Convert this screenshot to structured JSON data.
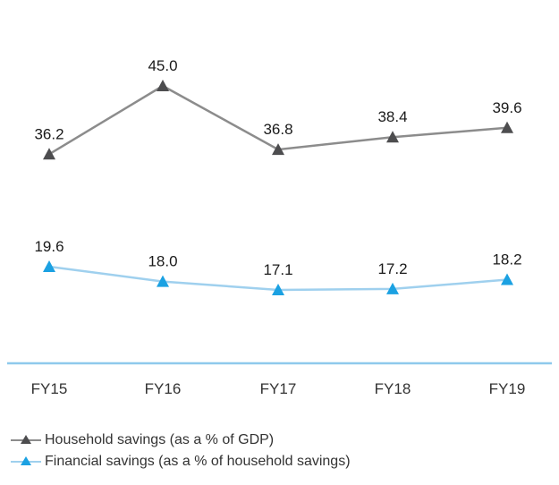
{
  "chart_data": {
    "type": "line",
    "title": "",
    "xlabel": "",
    "ylabel": "",
    "categories": [
      "FY15",
      "FY16",
      "FY17",
      "FY18",
      "FY19"
    ],
    "series": [
      {
        "name": "Household savings (as a % of GDP)",
        "values": [
          36.2,
          45.0,
          36.8,
          38.4,
          39.6
        ],
        "labels": [
          "36.2",
          "45.0",
          "36.8",
          "38.4",
          "39.6"
        ],
        "line_color": "#8c8c8c",
        "marker_color": "#4d4d4f",
        "marker": "triangle"
      },
      {
        "name": "Financial savings (as a % of household savings)",
        "values": [
          19.6,
          18.0,
          17.1,
          17.2,
          18.2
        ],
        "labels": [
          "19.6",
          "18.0",
          "17.1",
          "17.2",
          "18.2"
        ],
        "line_color": "#9fd0ee",
        "marker_color": "#1ba1e2",
        "marker": "triangle"
      }
    ],
    "axis_color": "#8ec9ec",
    "grid": false,
    "legend_position": "bottom-left"
  }
}
